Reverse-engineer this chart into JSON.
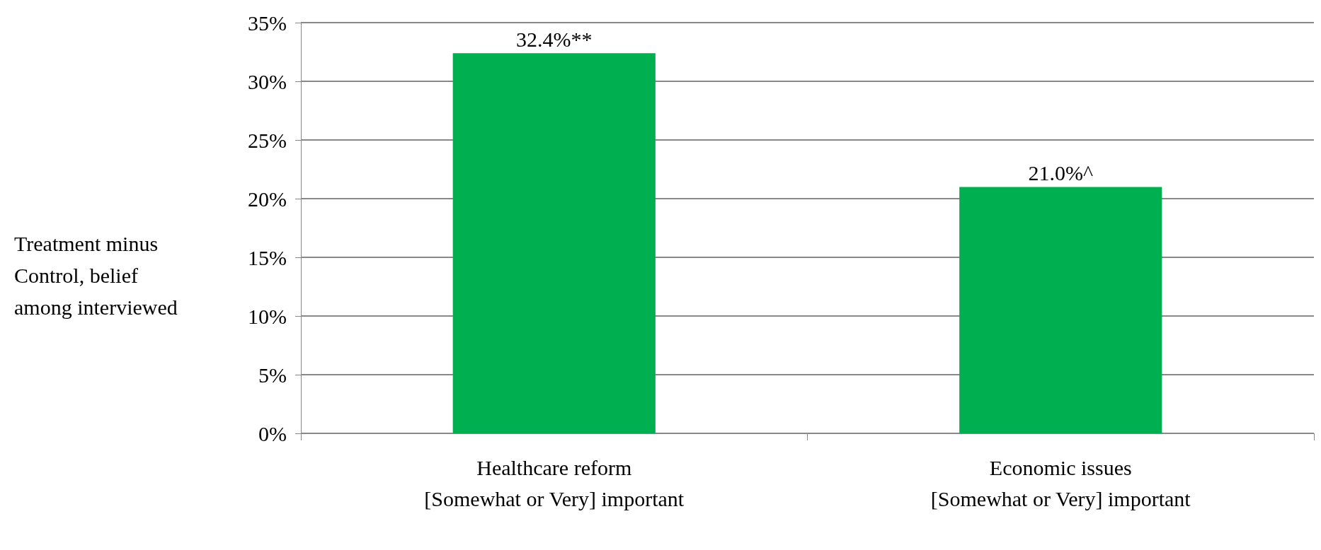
{
  "chart_data": {
    "type": "bar",
    "ylabel": "Treatment minus Control, belief among interviewed",
    "categories": [
      "Healthcare reform\n[Somewhat or Very] important",
      "Economic issues\n[Somewhat or Very] important"
    ],
    "values": [
      32.4,
      21.0
    ],
    "color": "#00b050",
    "value_labels": [
      "32.4%**",
      "21.0%^"
    ],
    "ylim": [
      0,
      35
    ],
    "yticks": [
      {
        "value": 0,
        "label": "0%"
      },
      {
        "value": 5,
        "label": "5%"
      },
      {
        "value": 10,
        "label": "10%"
      },
      {
        "value": 15,
        "label": "15%"
      },
      {
        "value": 20,
        "label": "20%"
      },
      {
        "value": 25,
        "label": "25%"
      },
      {
        "value": 30,
        "label": "30%"
      },
      {
        "value": 35,
        "label": "35%"
      }
    ],
    "grid": "y"
  }
}
